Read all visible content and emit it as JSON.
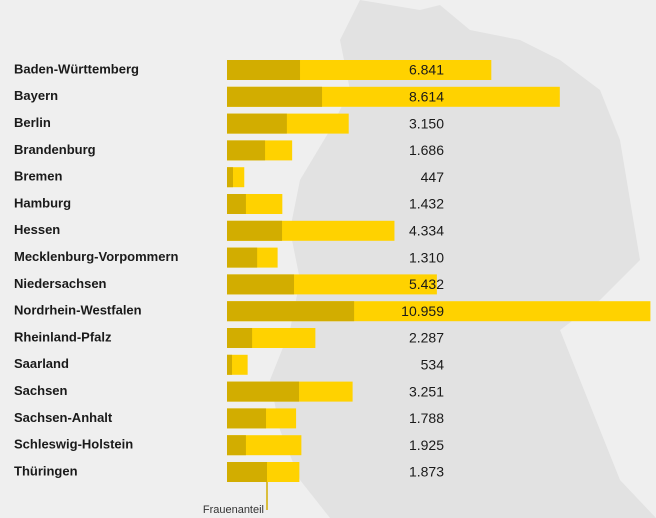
{
  "chart_data": {
    "type": "bar",
    "categories": [
      "Baden-Württemberg",
      "Bayern",
      "Berlin",
      "Brandenburg",
      "Bremen",
      "Hamburg",
      "Hessen",
      "Mecklenburg-Vorpommern",
      "Niedersachsen",
      "Nordrhein-Westfalen",
      "Rheinland-Pfalz",
      "Saarland",
      "Sachsen",
      "Sachsen-Anhalt",
      "Schleswig-Holstein",
      "Thüringen"
    ],
    "values": [
      6841,
      8614,
      3150,
      1686,
      447,
      1432,
      4334,
      1310,
      5432,
      10959,
      2287,
      534,
      3251,
      1788,
      1925,
      1873
    ],
    "value_labels": [
      "6.841",
      "8.614",
      "3.150",
      "1.686",
      "447",
      "1.432",
      "4.334",
      "1.310",
      "5.432",
      "10.959",
      "2.287",
      "534",
      "3.251",
      "1.788",
      "1.925",
      "1.873"
    ],
    "color": "#ffd200",
    "series": [
      {
        "name": "Frauenanteil",
        "color": "#d2ad00",
        "values": [
          1890,
          2460,
          1550,
          985,
          155,
          490,
          1425,
          780,
          1735,
          3290,
          650,
          130,
          1865,
          1010,
          490,
          1035
        ]
      }
    ],
    "xlim": [
      0,
      11000
    ]
  }
}
